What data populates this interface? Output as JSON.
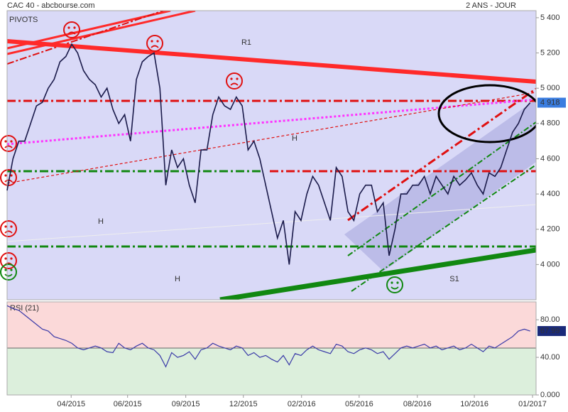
{
  "chart_data": [
    {
      "type": "line",
      "title": "CAC 40 - abcbourse.com",
      "subtitle": "2 ANS - JOUR",
      "label": "PIVOTS",
      "annotations": [
        "R1",
        "S1",
        "H",
        "H",
        "H"
      ],
      "x": [
        0,
        1,
        2,
        3,
        4,
        5,
        6,
        7,
        8,
        9,
        10,
        11,
        12,
        13,
        14,
        15,
        16,
        17,
        18,
        19,
        20,
        21,
        22,
        23,
        24,
        25,
        26,
        27,
        28,
        29,
        30,
        31,
        32,
        33,
        34,
        35,
        36,
        37,
        38,
        39,
        40,
        41,
        42,
        43,
        44,
        45,
        46,
        47,
        48,
        49,
        50,
        51,
        52,
        53,
        54,
        55,
        56,
        57,
        58,
        59,
        60,
        61,
        62,
        63,
        64,
        65,
        66,
        67,
        68,
        69,
        70,
        71,
        72,
        73,
        74,
        75,
        76,
        77,
        78,
        79,
        80,
        81,
        82,
        83,
        84,
        85,
        86,
        87,
        88,
        89
      ],
      "series": [
        {
          "color": "#1a1a4a",
          "values": [
            4420,
            4600,
            4700,
            4700,
            4800,
            4900,
            4920,
            5000,
            5050,
            5150,
            5180,
            5250,
            5200,
            5100,
            5050,
            5020,
            4950,
            5000,
            4880,
            4800,
            4850,
            4700,
            5050,
            5150,
            5180,
            5200,
            5000,
            4450,
            4650,
            4550,
            4600,
            4450,
            4350,
            4650,
            4650,
            4850,
            4950,
            4900,
            4880,
            4950,
            4900,
            4650,
            4700,
            4600,
            4450,
            4300,
            4150,
            4250,
            4000,
            4300,
            4250,
            4400,
            4500,
            4450,
            4350,
            4250,
            4550,
            4500,
            4300,
            4250,
            4400,
            4450,
            4450,
            4300,
            4350,
            4050,
            4200,
            4400,
            4400,
            4450,
            4450,
            4500,
            4400,
            4500,
            4450,
            4400,
            4500,
            4450,
            4480,
            4520,
            4450,
            4400,
            4520,
            4500,
            4550,
            4650,
            4750,
            4800,
            4880,
            4918
          ]
        }
      ],
      "last_price": {
        "value": 4918,
        "label": "4 918"
      },
      "xlim": [
        0,
        90
      ],
      "ylim": [
        3800,
        5440
      ],
      "yticks": [
        {
          "value": 4000,
          "label": "4 000"
        },
        {
          "value": 4200,
          "label": "4 200"
        },
        {
          "value": 4400,
          "label": "4 400"
        },
        {
          "value": 4600,
          "label": "4 600"
        },
        {
          "value": 4800,
          "label": "4 800"
        },
        {
          "value": 5000,
          "label": "5 000"
        },
        {
          "value": 5200,
          "label": "5 200"
        },
        {
          "value": 5400,
          "label": "5 400"
        }
      ]
    },
    {
      "type": "line",
      "title": "RSI (21)",
      "x": [
        0,
        1,
        2,
        3,
        4,
        5,
        6,
        7,
        8,
        9,
        10,
        11,
        12,
        13,
        14,
        15,
        16,
        17,
        18,
        19,
        20,
        21,
        22,
        23,
        24,
        25,
        26,
        27,
        28,
        29,
        30,
        31,
        32,
        33,
        34,
        35,
        36,
        37,
        38,
        39,
        40,
        41,
        42,
        43,
        44,
        45,
        46,
        47,
        48,
        49,
        50,
        51,
        52,
        53,
        54,
        55,
        56,
        57,
        58,
        59,
        60,
        61,
        62,
        63,
        64,
        65,
        66,
        67,
        68,
        69,
        70,
        71,
        72,
        73,
        74,
        75,
        76,
        77,
        78,
        79,
        80,
        81,
        82,
        83,
        84,
        85,
        86,
        87,
        88,
        89
      ],
      "series": [
        {
          "color": "#3a3aa8",
          "values": [
            95,
            92,
            90,
            85,
            80,
            75,
            70,
            68,
            62,
            60,
            58,
            55,
            50,
            48,
            50,
            52,
            50,
            46,
            45,
            55,
            50,
            48,
            52,
            55,
            50,
            48,
            42,
            30,
            45,
            40,
            42,
            46,
            38,
            48,
            50,
            55,
            52,
            50,
            48,
            52,
            50,
            42,
            45,
            40,
            42,
            38,
            35,
            42,
            32,
            44,
            42,
            48,
            52,
            48,
            46,
            44,
            54,
            52,
            46,
            44,
            48,
            50,
            48,
            44,
            46,
            38,
            44,
            50,
            52,
            50,
            52,
            54,
            50,
            52,
            48,
            50,
            52,
            48,
            50,
            54,
            50,
            46,
            52,
            50,
            54,
            58,
            62,
            68,
            70,
            67.99
          ]
        }
      ],
      "xlim": [
        0,
        90
      ],
      "ylim": [
        0,
        99
      ],
      "yticks": [
        {
          "value": 0,
          "label": "0.000"
        },
        {
          "value": 40,
          "label": "40.00"
        },
        {
          "value": 80,
          "label": "80.00"
        }
      ],
      "xticks": [
        {
          "value": 10.9,
          "label": "04/2015"
        },
        {
          "value": 20.5,
          "label": "06/2015"
        },
        {
          "value": 30.4,
          "label": "09/2015"
        },
        {
          "value": 40.2,
          "label": "12/2015"
        },
        {
          "value": 50.1,
          "label": "02/2016"
        },
        {
          "value": 59.9,
          "label": "05/2016"
        },
        {
          "value": 69.8,
          "label": "08/2016"
        },
        {
          "value": 79.5,
          "label": "10/2016"
        },
        {
          "value": 89.4,
          "label": "01/2017"
        }
      ]
    }
  ]
}
